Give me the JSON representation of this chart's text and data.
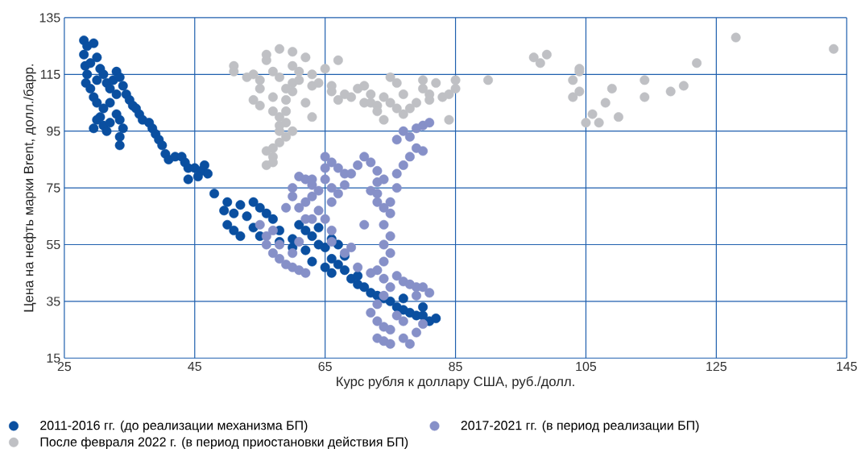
{
  "chart_data": {
    "type": "scatter",
    "xlabel": "Курс рубля к доллару США, руб./долл.",
    "ylabel": "Цена на нефть марки Brent, долл./барр.",
    "xlim": [
      25,
      145
    ],
    "xticks": [
      25,
      45,
      65,
      85,
      105,
      125,
      145
    ],
    "ylim": [
      15,
      135
    ],
    "yticks": [
      15,
      35,
      55,
      75,
      95,
      115,
      135
    ],
    "grid": true,
    "legend": "bottom",
    "marker": "circle",
    "series": [
      {
        "name": "2011-2016 гг. (до реализации механизма БП)",
        "color": "#0a4fa0",
        "x": [
          28,
          28.5,
          29.5,
          28,
          28.2,
          28.5,
          28.3,
          29,
          29.5,
          30,
          29,
          30,
          30.5,
          30,
          31,
          31.5,
          32,
          32.5,
          33,
          33.5,
          34,
          34.5,
          35,
          33,
          32,
          31,
          30.5,
          31,
          31.5,
          32,
          33,
          33.5,
          34,
          33.5,
          33.5,
          30,
          29.5,
          35.5,
          36,
          36.5,
          37,
          38,
          38.5,
          39,
          39.5,
          40,
          40.5,
          41,
          42,
          43,
          43.5,
          44,
          45,
          46,
          46.5,
          47,
          45.5,
          44,
          48,
          49.5,
          50,
          51,
          52,
          53,
          54,
          55,
          56,
          57,
          54,
          51,
          50,
          52,
          55,
          58,
          60,
          61,
          62,
          63,
          64,
          64,
          65,
          66,
          67,
          62,
          60,
          58,
          63,
          65,
          66,
          67,
          68,
          69,
          70,
          71,
          72,
          73,
          74,
          75,
          76,
          77,
          78,
          79,
          80,
          81,
          82,
          80,
          77,
          68,
          70,
          66
        ],
        "values": [
          127,
          125,
          126,
          122,
          118,
          115,
          112,
          110,
          107,
          105,
          119,
          121,
          117,
          113,
          115,
          112,
          110,
          113,
          116,
          114,
          111,
          108,
          106,
          108,
          105,
          103,
          100,
          97,
          95,
          98,
          101,
          99,
          96,
          93,
          90,
          99,
          96,
          104,
          103,
          101,
          99,
          98,
          96,
          94,
          92,
          90,
          87,
          85,
          86,
          86,
          84,
          82,
          82,
          81,
          83,
          80,
          79,
          78,
          73,
          67,
          70,
          66,
          69,
          65,
          70,
          68,
          66,
          64,
          61,
          60,
          62,
          58,
          58,
          60,
          57,
          62,
          60,
          58,
          55,
          61,
          54,
          57,
          55,
          53,
          54,
          56,
          49,
          47,
          45,
          48,
          46,
          43,
          41,
          40,
          38,
          37,
          36,
          35,
          33,
          32,
          31,
          30,
          30,
          28,
          29,
          33,
          36,
          51,
          44,
          50
        ]
      },
      {
        "name": "2017-2021 гг. (в период реализации БП)",
        "color": "#8690c8",
        "x": [
          55,
          56,
          57,
          56,
          57,
          58,
          59,
          60,
          61,
          62,
          58,
          60,
          61,
          59,
          60,
          60,
          61,
          62,
          63,
          63,
          62,
          64,
          65,
          65,
          65,
          66,
          67,
          68,
          68,
          67,
          66,
          64,
          63,
          65,
          66,
          66,
          68,
          69,
          70,
          71,
          72,
          73,
          73,
          72,
          73,
          74,
          75,
          75,
          74,
          75,
          74,
          75,
          74,
          73,
          74,
          75,
          76,
          77,
          78,
          79,
          80,
          81,
          79,
          74,
          73,
          72,
          73,
          74,
          75,
          73,
          74,
          75,
          77,
          78,
          79,
          80,
          77,
          76,
          76,
          77,
          78,
          79,
          76,
          77,
          78,
          79,
          80,
          81,
          80,
          76,
          74,
          73,
          71,
          70,
          72,
          69,
          63,
          66,
          61,
          62
        ],
        "values": [
          62,
          58,
          60,
          55,
          52,
          50,
          48,
          47,
          46,
          45,
          55,
          52,
          56,
          68,
          72,
          75,
          79,
          78,
          76,
          72,
          70,
          74,
          78,
          82,
          86,
          84,
          82,
          80,
          76,
          73,
          70,
          67,
          64,
          64,
          60,
          56,
          52,
          54,
          83,
          86,
          84,
          81,
          77,
          74,
          70,
          68,
          70,
          66,
          62,
          58,
          55,
          52,
          49,
          46,
          43,
          40,
          44,
          42,
          41,
          40,
          40,
          38,
          37,
          37,
          34,
          31,
          28,
          26,
          25,
          22,
          21,
          20,
          22,
          20,
          24,
          27,
          28,
          30,
          80,
          83,
          86,
          89,
          92,
          95,
          93,
          96,
          97,
          98,
          88,
          75,
          78,
          73,
          62,
          47,
          45,
          80,
          78,
          75,
          68,
          64
        ]
      },
      {
        "name": "После февраля 2022 г. (в период приостановки действия БП)",
        "color": "#bfc0c4",
        "x": [
          51,
          51,
          53,
          54,
          55,
          55,
          56,
          56,
          57,
          57,
          58,
          58,
          59,
          59,
          60,
          60,
          60,
          60,
          61,
          61,
          62,
          62,
          63,
          63,
          63,
          64,
          65,
          66,
          66,
          67,
          67,
          68,
          69,
          70,
          71,
          71,
          72,
          72,
          73,
          73,
          74,
          74,
          75,
          76,
          75,
          76,
          77,
          77,
          78,
          79,
          80,
          80,
          81,
          81,
          82,
          83,
          84,
          84,
          85,
          85,
          90,
          97,
          98,
          99,
          103,
          103,
          104,
          104,
          104,
          105,
          106,
          107,
          108,
          109,
          110,
          114,
          114,
          118,
          120,
          122,
          128,
          143,
          57,
          58,
          58,
          58,
          59,
          58,
          57,
          56,
          57,
          57,
          56,
          59,
          59,
          60,
          55,
          54
        ],
        "values": [
          116,
          118,
          114,
          115,
          113,
          110,
          122,
          120,
          116,
          107,
          114,
          124,
          110,
          106,
          123,
          118,
          112,
          109,
          116,
          113,
          121,
          105,
          115,
          111,
          100,
          112,
          117,
          109,
          111,
          120,
          106,
          108,
          107,
          110,
          111,
          105,
          105,
          108,
          104,
          102,
          107,
          99,
          105,
          103,
          114,
          112,
          108,
          101,
          103,
          105,
          110,
          113,
          106,
          108,
          112,
          107,
          108,
          99,
          113,
          110,
          113,
          121,
          119,
          122,
          113,
          107,
          116,
          117,
          109,
          98,
          101,
          98,
          105,
          110,
          100,
          113,
          107,
          109,
          111,
          119,
          128,
          124,
          102,
          100,
          97,
          95,
          93,
          91,
          89,
          88,
          86,
          84,
          83,
          98,
          102,
          95,
          104,
          106
        ]
      }
    ]
  }
}
